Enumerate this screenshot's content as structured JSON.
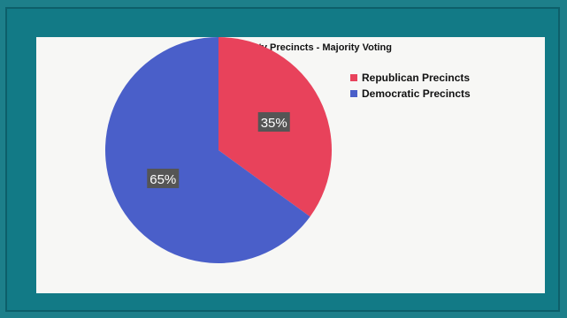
{
  "chart_data": {
    "type": "pie",
    "title": "Missoula County Precincts - Majority Voting",
    "slices": [
      {
        "label": "Republican Precincts",
        "value": 35,
        "display": "35%",
        "color": "#e8425b"
      },
      {
        "label": "Democratic Precincts",
        "value": 65,
        "display": "65%",
        "color": "#4a5fc9"
      }
    ],
    "legend_position": "right",
    "data_label_bg": "#555555",
    "data_label_color": "#ffffff"
  }
}
